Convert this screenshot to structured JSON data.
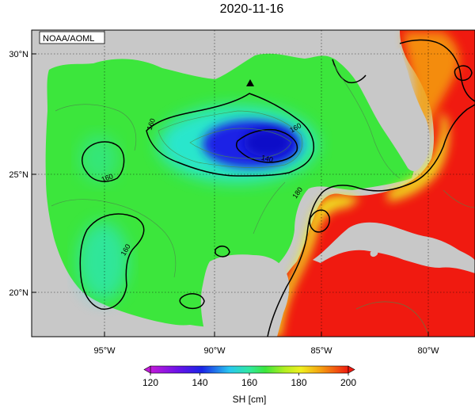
{
  "header": {
    "date": "2020-11-16"
  },
  "badge": {
    "source": "NOAA/AOML"
  },
  "axes": {
    "lat_ticks": [
      "30°N",
      "25°N",
      "20°N"
    ],
    "lon_ticks": [
      "95°W",
      "90°W",
      "85°W",
      "80°W"
    ]
  },
  "contour_labels": [
    "160",
    "160",
    "160",
    "160",
    "140",
    "180"
  ],
  "colorbar": {
    "ticks": [
      "120",
      "140",
      "160",
      "180",
      "200"
    ],
    "label": "SH [cm]",
    "min": 120,
    "max": 200
  },
  "colors": {
    "land": "#c8c8c8",
    "deep_blue": "#1a24e6",
    "cyan": "#28e6e6",
    "green": "#3ce63c",
    "yellow": "#f0f020",
    "red": "#f01a10"
  },
  "icons": {
    "marker": "triangle-marker-icon"
  }
}
